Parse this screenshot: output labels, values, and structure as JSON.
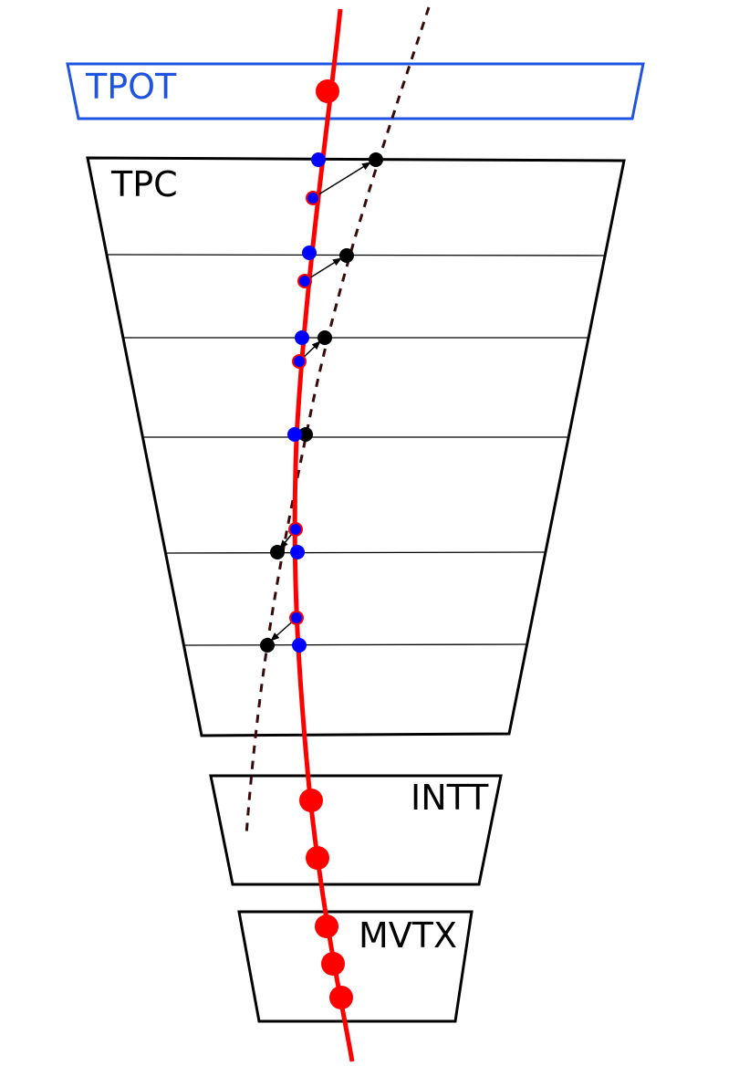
{
  "labels": {
    "tpot": "TPOT",
    "tpc": "TPC",
    "intt": "INTT",
    "mvtx": "MVTX"
  },
  "colors": {
    "tpot_outline": "#1f54e0",
    "tpot_text": "#1f54e0",
    "detector_outline": "#000000",
    "track": "#ff0000",
    "measured_cluster": "#0000ff",
    "shifted_cluster": "#000000",
    "dashed_track": "#3a0a0a",
    "arrow": "#000000"
  }
}
